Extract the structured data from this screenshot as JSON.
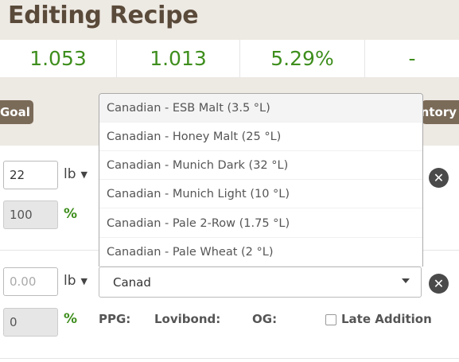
{
  "header": {
    "title": "Editing Recipe"
  },
  "stats": [
    "1.053",
    "1.013",
    "5.29%",
    "-"
  ],
  "tabs": {
    "goal": "Goal",
    "inventory": "Inventory"
  },
  "row1": {
    "amount": "22",
    "unit": "lb",
    "percent": "100",
    "pct_sign": "%"
  },
  "row2": {
    "amount_placeholder": "0.00",
    "unit": "lb",
    "percent": "0",
    "pct_sign": "%",
    "search_value": "Canad",
    "ppg_label": "PPG:",
    "lovibond_label": "Lovibond:",
    "og_label": "OG:",
    "late_addition_label": "Late Addition",
    "late_addition_checked": false
  },
  "dropdown": {
    "options": [
      "Canadian - ESB Malt (3.5 °L)",
      "Canadian - Honey Malt (25 °L)",
      "Canadian - Munich Dark (32 °L)",
      "Canadian - Munich Light (10 °L)",
      "Canadian - Pale 2-Row (1.75 °L)",
      "Canadian - Pale Wheat (2 °L)"
    ],
    "active_index": 0
  },
  "colors": {
    "accent_green": "#3e8e1d",
    "brown": "#7a6a58",
    "band": "#ede9e3"
  }
}
